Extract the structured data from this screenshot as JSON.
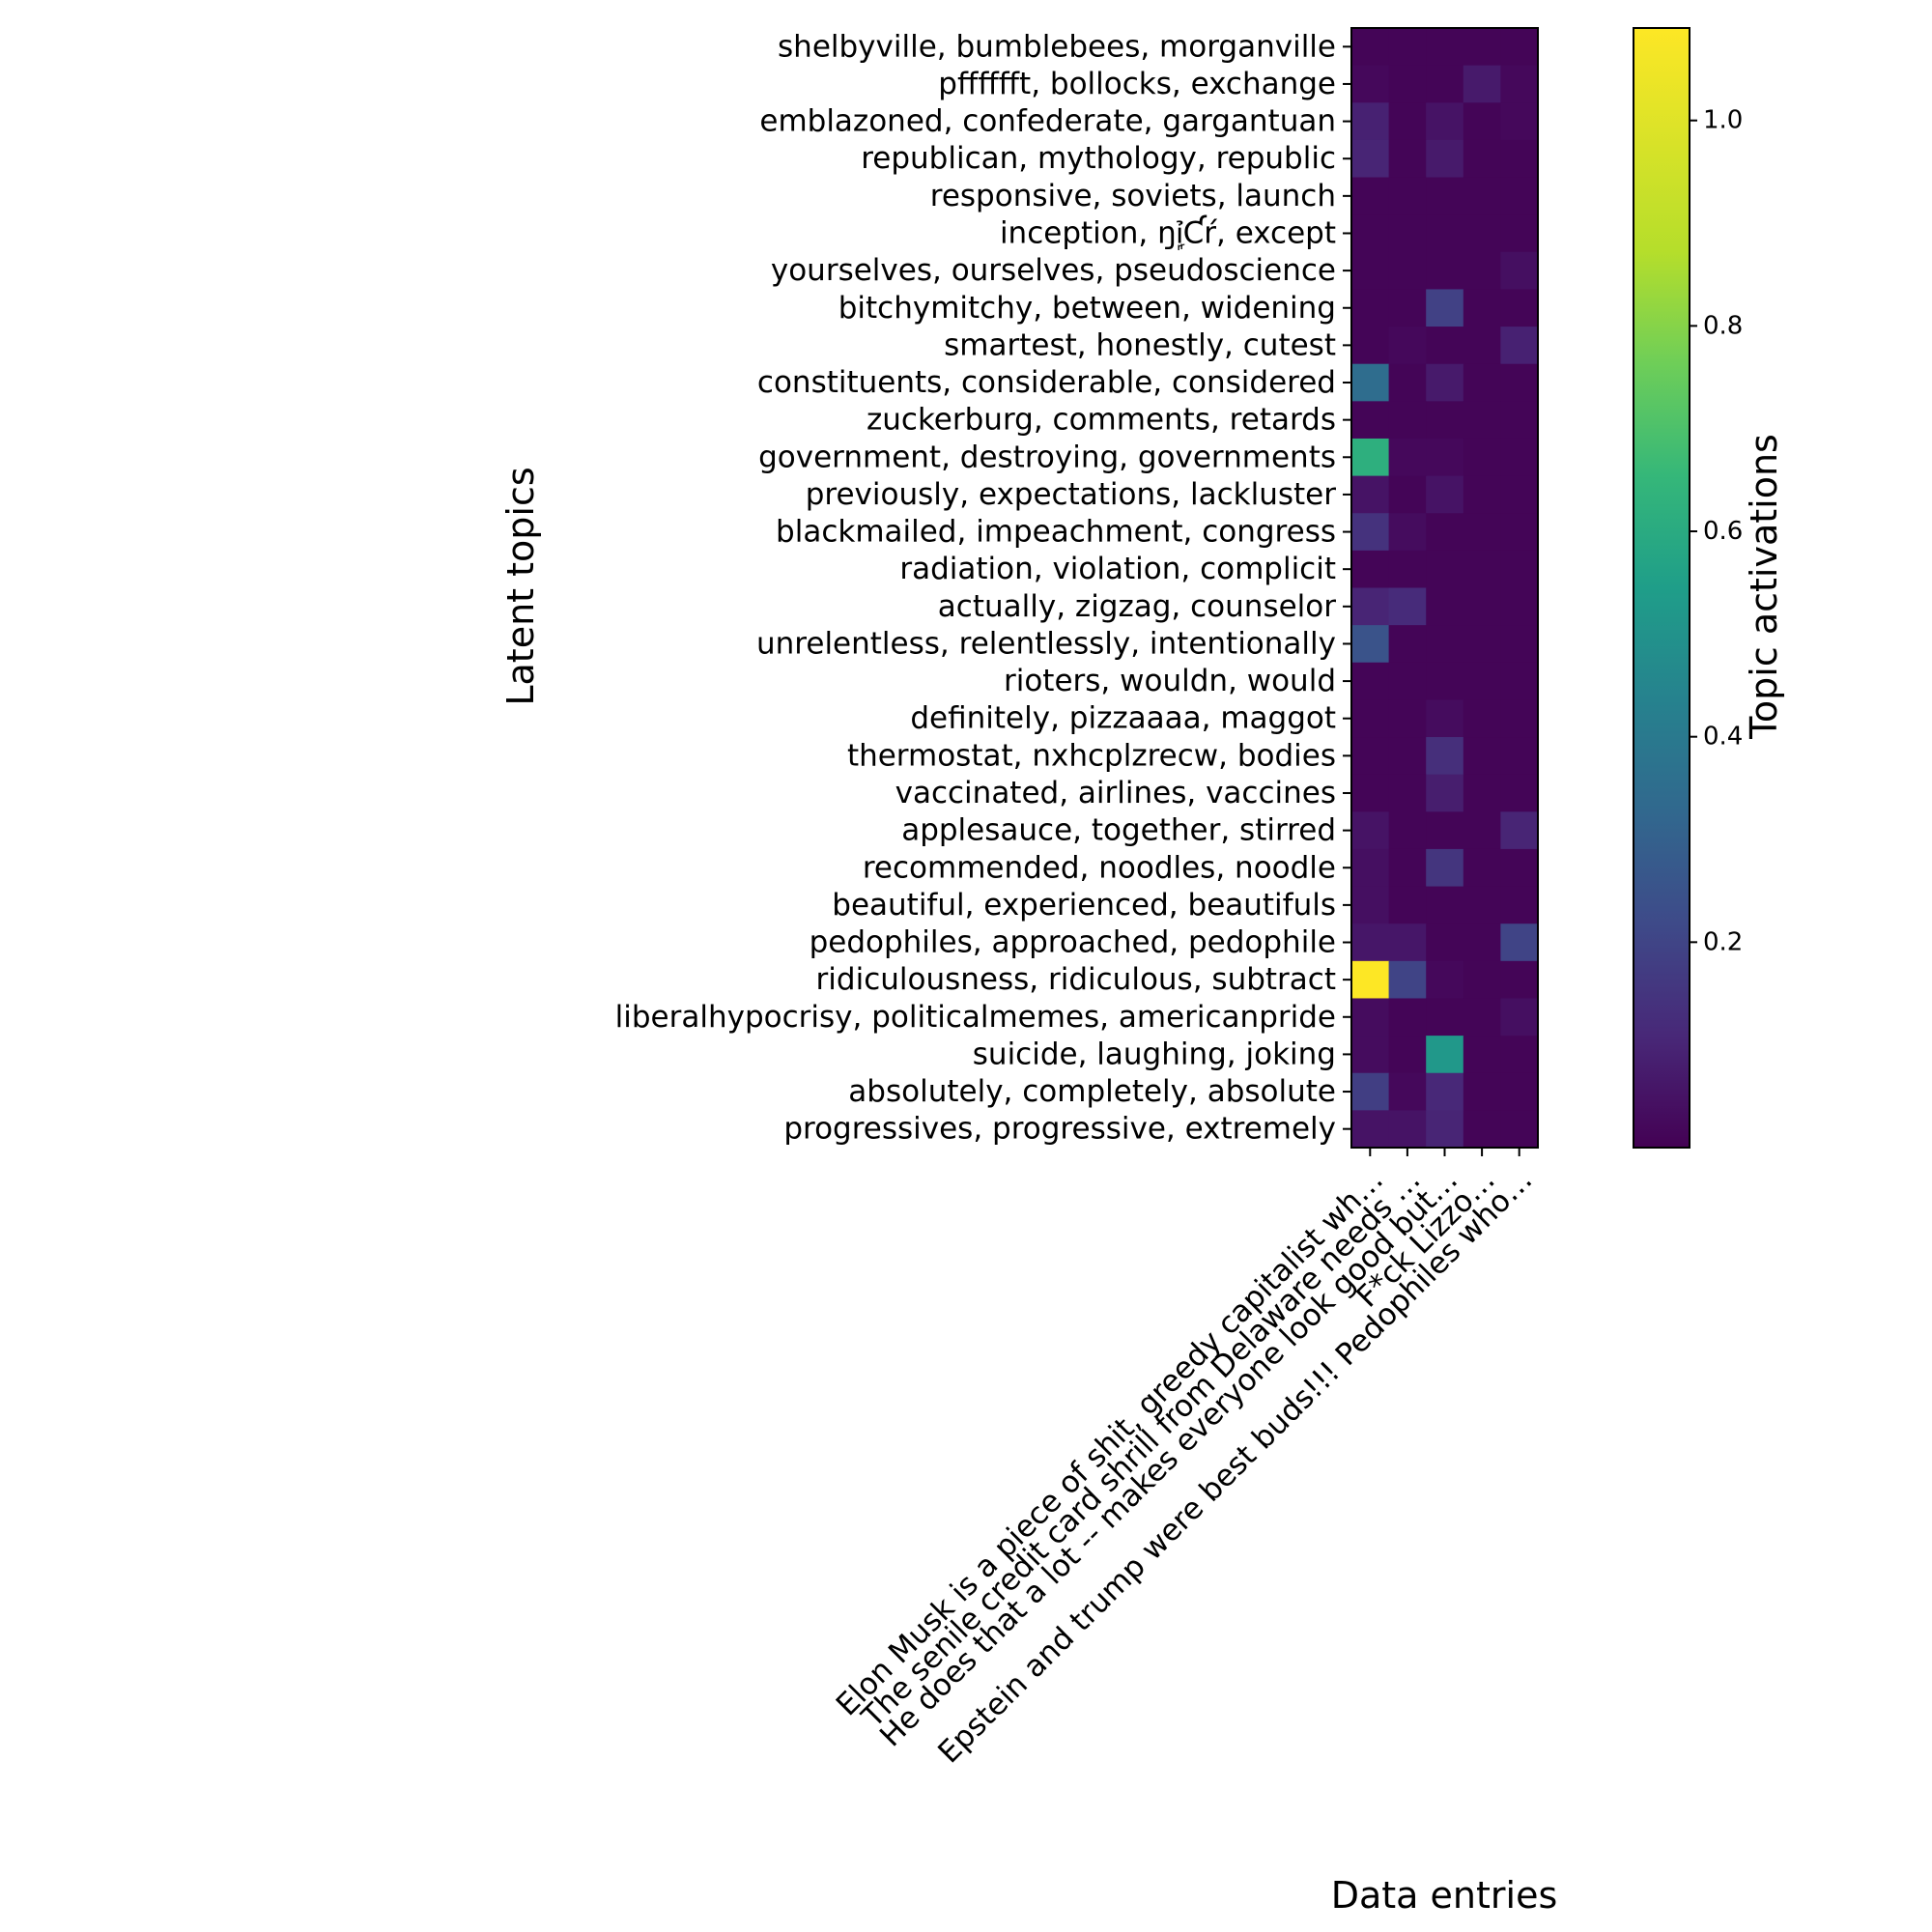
{
  "chart_data": {
    "type": "heatmap",
    "colormap": "viridis",
    "xlabel": "Data entries",
    "ylabel": "Latent topics",
    "colorbar_label": "Topic activations",
    "value_range": [
      0.0,
      1.09
    ],
    "colorbar_ticks": [
      "0.2",
      "0.4",
      "0.6",
      "0.8",
      "1.0"
    ],
    "x_categories": [
      "Elon Musk is a piece of shit, greedy capitalist wh…",
      "The senile credit card shrill from Delaware needs …",
      "He does that a lot -- makes everyone look good but…",
      "F*ck Lizzo…",
      "Epstein and trump were best buds!!! Pedophiles who…"
    ],
    "y_categories": [
      "shelbyville, bumblebees, morganville",
      "pfffffft, bollocks, exchange",
      "emblazoned, confederate, gargantuan",
      "republican, mythology, republic",
      "responsive, soviets, launch",
      "inception, ŋỉ᷊᷊Ƈŕ, except",
      "yourselves, ourselves, pseudoscience",
      "bitchymitchy, between, widening",
      "smartest, honestly, cutest",
      "constituents, considerable, considered",
      "zuckerburg, comments, retards",
      "government, destroying, governments",
      "previously, expectations, lackluster",
      "blackmailed, impeachment, congress",
      "radiation, violation, complicit",
      "actually, zigzag, counselor",
      "unrelentless, relentlessly, intentionally",
      "rioters, wouldn, would",
      "definitely, pizzaaaa, maggot",
      "thermostat, nxhcplzrecw, bodies",
      "vaccinated, airlines, vaccines",
      "applesauce, together, stirred",
      "recommended, noodles, noodle",
      "beautiful, experienced, beautifuls",
      "pedophiles, approached, pedophile",
      "ridiculousness, ridiculous, subtract",
      "liberalhypocrisy, politicalmemes, americanpride",
      "suicide, laughing, joking",
      "absolutely, completely, absolute",
      "progressives, progressive, extremely"
    ],
    "values": [
      [
        0.01,
        0.01,
        0.01,
        0.01,
        0.01
      ],
      [
        0.02,
        0.01,
        0.01,
        0.07,
        0.02
      ],
      [
        0.09,
        0.01,
        0.05,
        0.01,
        0.02
      ],
      [
        0.1,
        0.01,
        0.07,
        0.01,
        0.01
      ],
      [
        0.01,
        0.01,
        0.01,
        0.01,
        0.01
      ],
      [
        0.01,
        0.01,
        0.01,
        0.01,
        0.01
      ],
      [
        0.01,
        0.01,
        0.01,
        0.01,
        0.04
      ],
      [
        0.01,
        0.01,
        0.19,
        0.01,
        0.01
      ],
      [
        0.01,
        0.02,
        0.01,
        0.01,
        0.09
      ],
      [
        0.35,
        0.01,
        0.07,
        0.01,
        0.01
      ],
      [
        0.01,
        0.01,
        0.01,
        0.01,
        0.01
      ],
      [
        0.62,
        0.02,
        0.02,
        0.01,
        0.01
      ],
      [
        0.05,
        0.01,
        0.05,
        0.01,
        0.01
      ],
      [
        0.14,
        0.03,
        0.01,
        0.01,
        0.01
      ],
      [
        0.01,
        0.01,
        0.01,
        0.01,
        0.01
      ],
      [
        0.1,
        0.12,
        0.01,
        0.01,
        0.01
      ],
      [
        0.25,
        0.01,
        0.01,
        0.01,
        0.01
      ],
      [
        0.01,
        0.01,
        0.01,
        0.01,
        0.01
      ],
      [
        0.01,
        0.01,
        0.03,
        0.01,
        0.01
      ],
      [
        0.01,
        0.01,
        0.13,
        0.01,
        0.01
      ],
      [
        0.01,
        0.01,
        0.08,
        0.01,
        0.01
      ],
      [
        0.05,
        0.01,
        0.01,
        0.01,
        0.1
      ],
      [
        0.04,
        0.01,
        0.15,
        0.01,
        0.01
      ],
      [
        0.04,
        0.01,
        0.01,
        0.01,
        0.01
      ],
      [
        0.06,
        0.06,
        0.01,
        0.01,
        0.2
      ],
      [
        1.09,
        0.2,
        0.02,
        0.01,
        0.01
      ],
      [
        0.03,
        0.01,
        0.01,
        0.01,
        0.04
      ],
      [
        0.03,
        0.01,
        0.52,
        0.01,
        0.01
      ],
      [
        0.18,
        0.02,
        0.11,
        0.01,
        0.01
      ],
      [
        0.05,
        0.05,
        0.1,
        0.01,
        0.01
      ]
    ]
  }
}
